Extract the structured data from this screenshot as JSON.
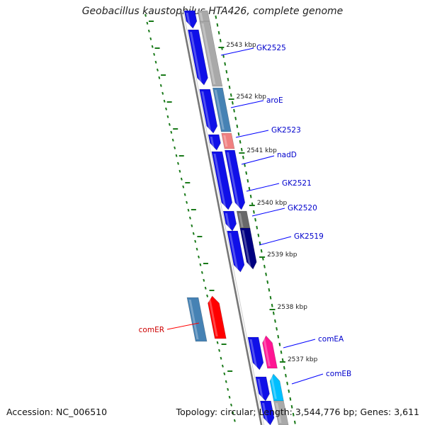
{
  "title": "Geobacillus kaustophilus HTA426, complete genome",
  "footer": {
    "accession": "Accession: NC_006510",
    "summary": "Topology: circular; Length: 3,544,776 bp; Genes: 3,611"
  },
  "colors": {
    "backbone": "#777777",
    "tick": "#1a7a1a",
    "gene_blue": "#1010e8",
    "gene_steel": "#4682b4",
    "gene_gray": "#a9a9a9",
    "gene_red": "#ff0000",
    "gene_salmon": "#f08080",
    "gene_dimgray": "#696969",
    "gene_navy": "#000080",
    "gene_pink": "#ff1493",
    "gene_cyan": "#00bfff",
    "label_blue": "#0000cc",
    "label_red": "#cc0000",
    "label_line_blue": "#0000ff",
    "label_line_red": "#ff0000"
  },
  "kbp_ticks": [
    "2543 kbp",
    "2542 kbp",
    "2541 kbp",
    "2540 kbp",
    "2539 kbp",
    "2538 kbp",
    "2537 kbp"
  ],
  "gene_labels": [
    {
      "text": "GK2525",
      "color": "label_blue"
    },
    {
      "text": "aroE",
      "color": "label_blue"
    },
    {
      "text": "GK2523",
      "color": "label_blue"
    },
    {
      "text": "nadD",
      "color": "label_blue"
    },
    {
      "text": "GK2521",
      "color": "label_blue"
    },
    {
      "text": "GK2520",
      "color": "label_blue"
    },
    {
      "text": "GK2519",
      "color": "label_blue"
    },
    {
      "text": "comER",
      "color": "label_red"
    },
    {
      "text": "comEA",
      "color": "label_blue"
    },
    {
      "text": "comEB",
      "color": "label_blue"
    }
  ]
}
